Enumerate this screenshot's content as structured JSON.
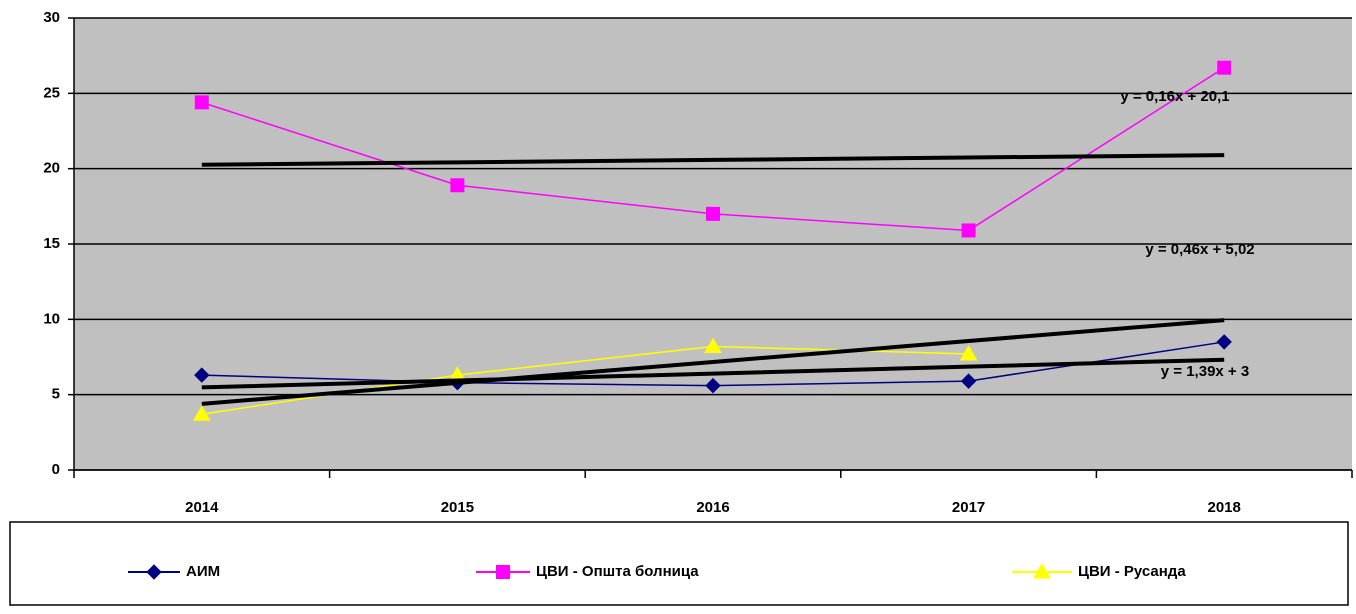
{
  "chart_data": {
    "type": "line",
    "categories": [
      "2014",
      "2015",
      "2016",
      "2017",
      "2018"
    ],
    "series": [
      {
        "name": "АИМ",
        "color": "#000080",
        "marker": "diamond",
        "values": [
          6.3,
          5.8,
          5.6,
          5.9,
          8.5
        ]
      },
      {
        "name": "ЦВИ - Општа болница",
        "color": "#ff00ff",
        "marker": "square",
        "values": [
          24.4,
          18.9,
          17.0,
          15.9,
          26.7
        ]
      },
      {
        "name": "ЦВИ - Русанда",
        "color": "#ffff00",
        "marker": "triangle",
        "values": [
          3.7,
          6.3,
          8.2,
          7.7,
          null
        ]
      }
    ],
    "trendlines": [
      {
        "label": "y = 0,16x + 20,1",
        "color": "#000000",
        "values": [
          20.26,
          20.42,
          20.58,
          20.74,
          20.9
        ]
      },
      {
        "label": "y = 0,46x + 5,02",
        "color": "#000000",
        "values": [
          5.48,
          5.94,
          6.4,
          6.86,
          7.32
        ]
      },
      {
        "label": "y = 1,39x + 3",
        "color": "#000000",
        "values": [
          4.39,
          5.78,
          7.17,
          8.56,
          9.95
        ]
      }
    ],
    "ylim": [
      0,
      30
    ],
    "yticks": [
      0,
      5,
      10,
      15,
      20,
      25,
      30
    ],
    "grid": true,
    "legend": "bottom"
  }
}
